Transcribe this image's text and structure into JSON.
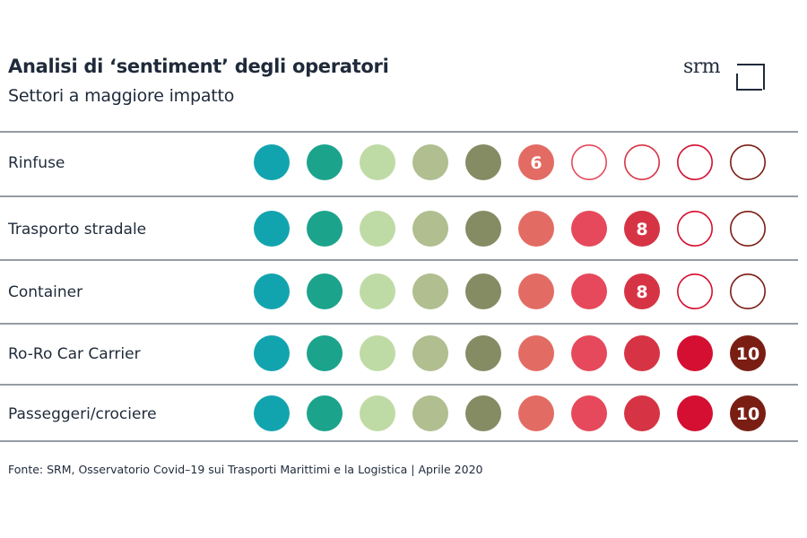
{
  "header": {
    "title": "Analisi di ‘sentiment’ degli operatori",
    "subtitle": "Settori a maggiore impatto",
    "logo_text": "srm"
  },
  "chart_data": {
    "type": "table",
    "scale_max": 10,
    "level_colors": [
      "#12a4ae",
      "#1ca38c",
      "#bfdba5",
      "#b0be90",
      "#858c64",
      "#e26c63",
      "#e6495b",
      "#d63444",
      "#d40f32",
      "#7a1e14"
    ],
    "rows": [
      {
        "label": "Rinfuse",
        "value": 6
      },
      {
        "label": "Trasporto stradale",
        "value": 8
      },
      {
        "label": "Container",
        "value": 8
      },
      {
        "label": "Ro-Ro Car Carrier",
        "value": 10
      },
      {
        "label": "Passeggeri/crociere",
        "value": 10
      }
    ]
  },
  "footer": {
    "source": "Fonte: SRM, Osservatorio Covid–19 sui Trasporti Marittimi e la Logistica | Aprile 2020"
  }
}
